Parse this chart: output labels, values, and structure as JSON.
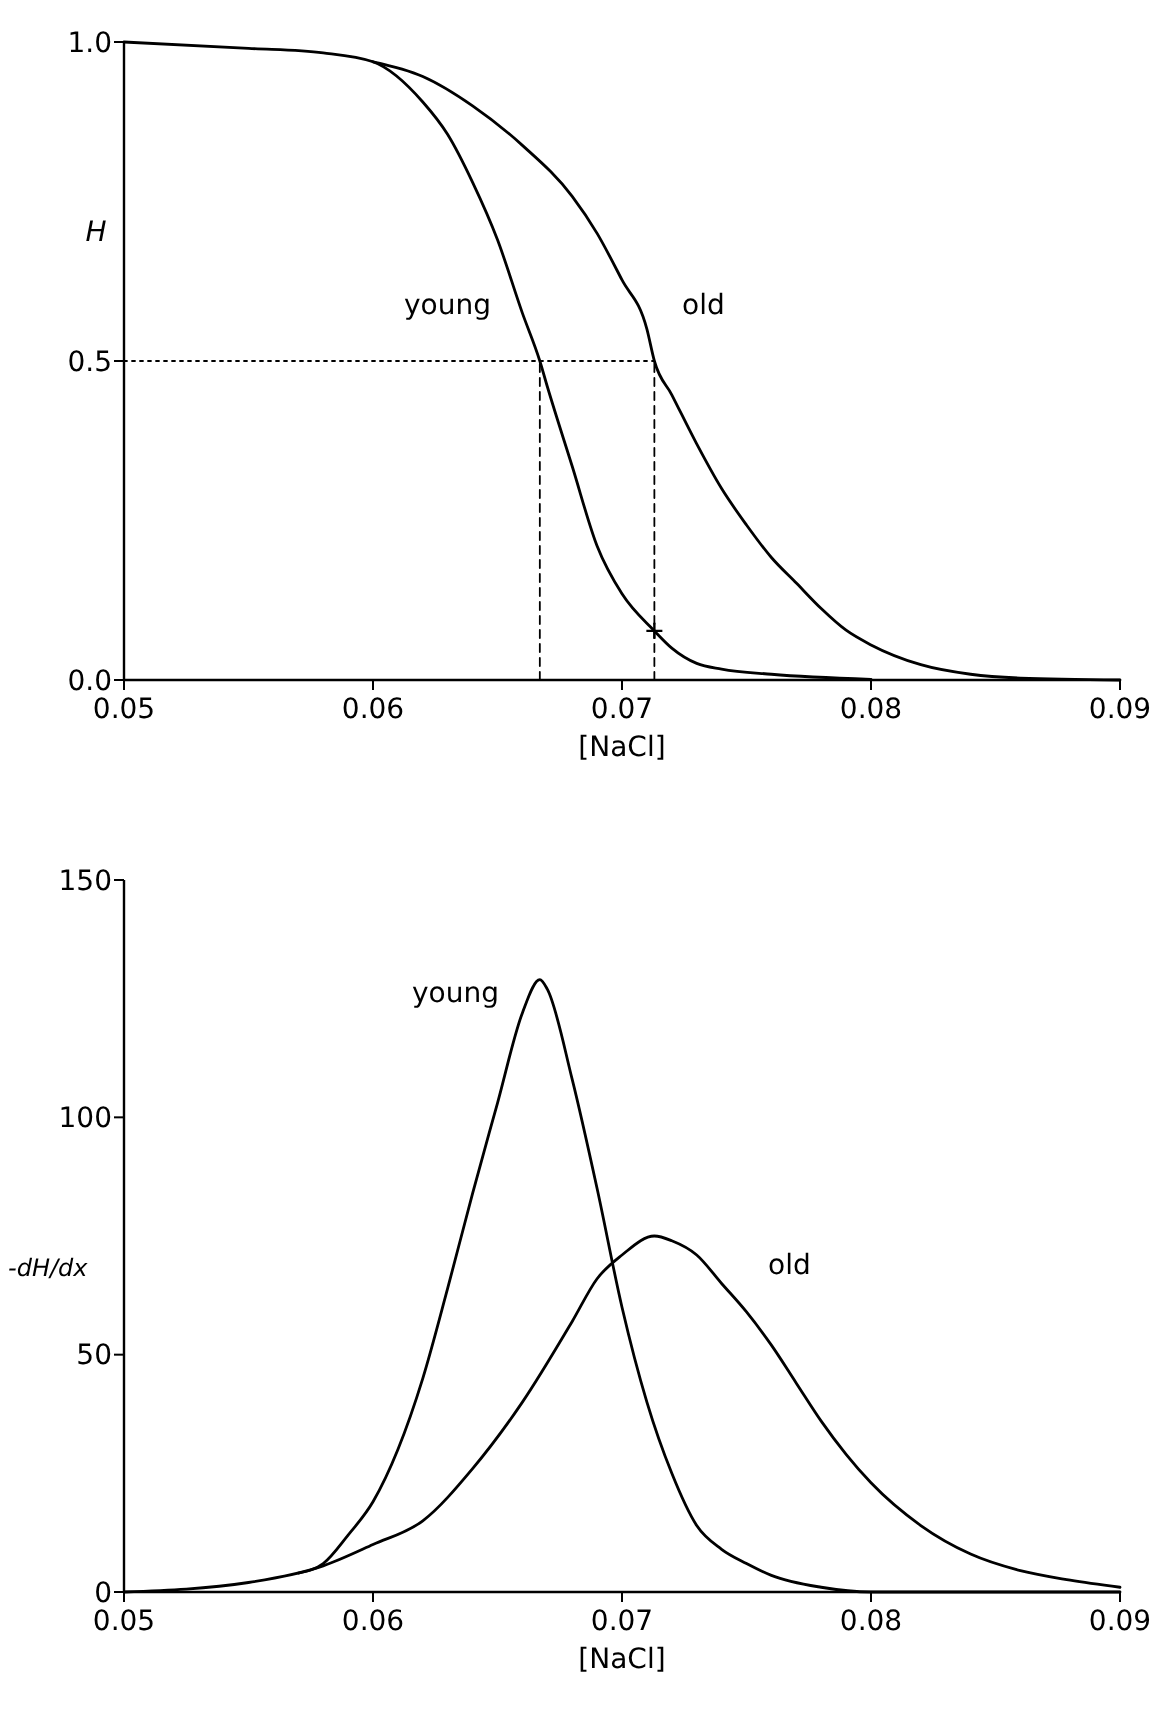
{
  "chart_data": [
    {
      "type": "line",
      "xlabel": "[NaCl]",
      "ylabel": "H",
      "xlim": [
        0.05,
        0.09
      ],
      "ylim": [
        0,
        1
      ],
      "xticks": [
        0.05,
        0.06,
        0.07,
        0.08,
        0.09
      ],
      "yticks": [
        {
          "value": 0,
          "label": "0.0"
        },
        0.5,
        {
          "value": 1,
          "label": "1.0"
        }
      ],
      "series": [
        {
          "name": "young",
          "color": "#000000",
          "x": [
            0.05,
            0.055,
            0.058,
            0.06,
            0.062,
            0.063,
            0.064,
            0.065,
            0.066,
            0.0667,
            0.067,
            0.068,
            0.069,
            0.07,
            0.0713,
            0.072,
            0.073,
            0.074,
            0.076,
            0.08
          ],
          "values": [
            1.0,
            0.99,
            0.983,
            0.969,
            0.906,
            0.855,
            0.78,
            0.69,
            0.575,
            0.5,
            0.46,
            0.335,
            0.21,
            0.135,
            0.077,
            0.05,
            0.026,
            0.017,
            0.009,
            0.001
          ]
        },
        {
          "name": "old",
          "color": "#000000",
          "x": [
            0.06,
            0.062,
            0.064,
            0.066,
            0.068,
            0.069,
            0.07,
            0.071,
            0.0713,
            0.072,
            0.073,
            0.074,
            0.075,
            0.076,
            0.077,
            0.078,
            0.079,
            0.08,
            0.082,
            0.084,
            0.086,
            0.09
          ],
          "values": [
            0.969,
            0.946,
            0.9,
            0.838,
            0.758,
            0.7,
            0.627,
            0.55,
            0.5,
            0.447,
            0.37,
            0.3,
            0.243,
            0.192,
            0.152,
            0.112,
            0.078,
            0.055,
            0.024,
            0.009,
            0.003,
            0
          ]
        },
        {
          "type": "line",
          "color": "#000000",
          "line_style": "dotted",
          "x": [
            0.05,
            0.0713
          ],
          "values": [
            0.5,
            0.5
          ]
        },
        {
          "type": "line",
          "color": "#000000",
          "line_style": "dashed",
          "x": [
            0.0667,
            0.0667
          ],
          "values": [
            0,
            0.5
          ]
        },
        {
          "type": "line",
          "color": "#000000",
          "line_style": "dashed",
          "x": [
            0.0713,
            0.0713
          ],
          "values": [
            0,
            0.5
          ]
        },
        {
          "type": "scatter",
          "color": "#000000",
          "marker": "cross",
          "x": [
            0.0713
          ],
          "values": [
            0.077
          ]
        }
      ]
    },
    {
      "type": "line",
      "xlabel": "[NaCl]",
      "ylabel": "-dH/dx",
      "xlim": [
        0.05,
        0.09
      ],
      "ylim": [
        0,
        150
      ],
      "xticks": [
        0.05,
        0.06,
        0.07,
        0.08,
        0.09
      ],
      "yticks": [
        0,
        50,
        100,
        150
      ],
      "series": [
        {
          "name": "young",
          "color": "#000000",
          "x": [
            0.057,
            0.058,
            0.059,
            0.06,
            0.061,
            0.062,
            0.063,
            0.064,
            0.065,
            0.066,
            0.0667,
            0.067,
            0.068,
            0.069,
            0.07,
            0.071,
            0.072,
            0.073,
            0.074,
            0.075,
            0.076,
            0.078,
            0.08,
            0.09
          ],
          "values": [
            4,
            6,
            12,
            19,
            30,
            45,
            64,
            84,
            103,
            122,
            129,
            127,
            108,
            85,
            60,
            40,
            25,
            14,
            9,
            6,
            3.5,
            1,
            0,
            0
          ]
        },
        {
          "name": "old",
          "color": "#000000",
          "x": [
            0.05,
            0.055,
            0.058,
            0.06,
            0.062,
            0.064,
            0.066,
            0.068,
            0.069,
            0.07,
            0.0713,
            0.072,
            0.073,
            0.074,
            0.075,
            0.076,
            0.077,
            0.078,
            0.079,
            0.08,
            0.082,
            0.084,
            0.086,
            0.088,
            0.09
          ],
          "values": [
            0,
            2,
            5.5,
            10,
            15,
            26,
            40,
            57,
            66,
            71,
            75,
            74,
            71,
            65,
            59,
            52,
            44,
            36,
            29,
            23,
            14,
            8,
            4.5,
            2.5,
            1
          ]
        }
      ]
    }
  ]
}
